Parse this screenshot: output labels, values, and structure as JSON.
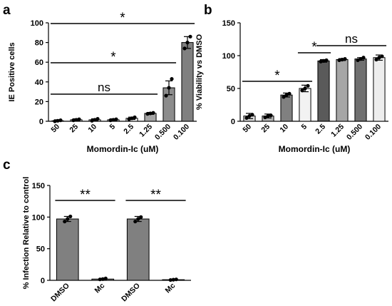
{
  "chart_data": [
    {
      "panel": "a",
      "type": "bar",
      "categories": [
        "50",
        "25",
        "10",
        "5",
        "2.5",
        "1.25",
        "0.500",
        "0.100"
      ],
      "values": [
        0.5,
        1.5,
        1.5,
        1.5,
        3,
        8,
        34,
        80
      ],
      "errors": [
        1,
        1,
        1,
        1,
        1.2,
        1,
        7,
        6
      ],
      "points": [
        [
          0,
          0.5,
          1
        ],
        [
          1,
          1.5,
          2
        ],
        [
          0.5,
          1.5,
          2.5
        ],
        [
          1,
          1.5,
          2
        ],
        [
          2,
          3,
          4
        ],
        [
          7.5,
          8,
          8.5
        ],
        [
          26,
          34,
          43
        ],
        [
          74,
          80,
          86
        ]
      ],
      "bar_colors": [
        "#ffffff",
        "#ffffff",
        "#ffffff",
        "#ffffff",
        "#ffffff",
        "#a6a6a6",
        "#8c8c8c",
        "#808080"
      ],
      "xlabel": "Momordin-Ic (uM)",
      "ylabel": "IE Positive cells",
      "ylim": [
        0,
        100
      ],
      "yticks": [
        0,
        20,
        40,
        60,
        80,
        100
      ],
      "significance": [
        {
          "from": 0,
          "to": 5,
          "label": "ns"
        },
        {
          "from": 0,
          "to": 6,
          "label": "*"
        },
        {
          "from": 0,
          "to": 7,
          "label": "*"
        }
      ]
    },
    {
      "panel": "b",
      "type": "bar",
      "categories": [
        "50",
        "25",
        "10",
        "5",
        "2.5",
        "1.25",
        "0.500",
        "0.100"
      ],
      "values": [
        8,
        8,
        40,
        50,
        92,
        94,
        95,
        97
      ],
      "errors": [
        4,
        3,
        3,
        5,
        2,
        1.5,
        2,
        4
      ],
      "points": [
        [
          5,
          8,
          10
        ],
        [
          6,
          8,
          9
        ],
        [
          37,
          40,
          42
        ],
        [
          47,
          50,
          54
        ],
        [
          91,
          92,
          93
        ],
        [
          93,
          94,
          95
        ],
        [
          93,
          95,
          97
        ],
        [
          94,
          97,
          99
        ]
      ],
      "bar_colors": [
        "#d9d9d9",
        "#b3b3b3",
        "#808080",
        "#f2f2f2",
        "#5a5a5a",
        "#a6a6a6",
        "#707070",
        "#ededed"
      ],
      "xlabel": "Momordin-Ic (uM)",
      "ylabel": "% Viability vs DMSO",
      "ylim": [
        0,
        150
      ],
      "yticks": [
        0,
        50,
        100,
        150
      ],
      "significance": [
        {
          "from": 0,
          "to": 3,
          "label": "*"
        },
        {
          "from": 3,
          "to": 4,
          "label": "*"
        },
        {
          "from": 4,
          "to": 7,
          "label": "ns"
        }
      ]
    },
    {
      "panel": "c",
      "type": "bar",
      "categories": [
        "DMSO",
        "Mc",
        "DMSO",
        "Mc"
      ],
      "values": [
        97,
        2,
        97,
        1
      ],
      "errors": [
        4,
        1,
        4,
        0.5
      ],
      "points": [
        [
          93,
          97,
          101
        ],
        [
          1.5,
          2,
          3
        ],
        [
          93,
          97,
          100
        ],
        [
          0.5,
          1,
          1.5
        ]
      ],
      "bar_colors": [
        "#808080",
        "#808080",
        "#808080",
        "#808080"
      ],
      "xlabel": "",
      "ylabel": "% Infection Relative to control",
      "ylim": [
        0,
        150
      ],
      "yticks": [
        0,
        50,
        100,
        150
      ],
      "significance": [
        {
          "from": 0,
          "to": 1,
          "label": "**"
        },
        {
          "from": 2,
          "to": 3,
          "label": "**"
        }
      ]
    }
  ],
  "panels": {
    "a": {
      "letter": "a"
    },
    "b": {
      "letter": "b"
    },
    "c": {
      "letter": "c"
    }
  }
}
